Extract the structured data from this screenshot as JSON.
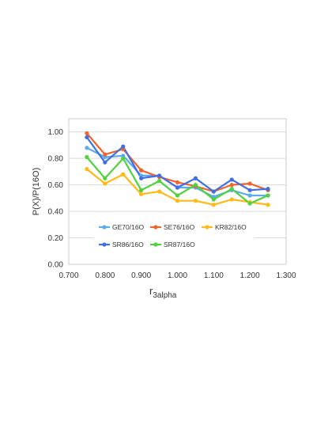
{
  "chart_data": {
    "type": "line",
    "xlabel": "r",
    "xlabel_sub": "3alpha",
    "ylabel": "P(X)/P(16O)",
    "xlim": [
      0.7,
      1.3
    ],
    "ylim": [
      0.0,
      1.1
    ],
    "x_ticks": [
      "0.700",
      "0.800",
      "0.900",
      "1.000",
      "1.100",
      "1.200",
      "1.300"
    ],
    "y_ticks": [
      "0.00",
      "0.20",
      "0.40",
      "0.60",
      "0.80",
      "1.00"
    ],
    "grid": "horizontal",
    "legend_position": "inside-bottom-left",
    "x": [
      0.75,
      0.8,
      0.85,
      0.9,
      0.95,
      1.0,
      1.05,
      1.1,
      1.15,
      1.2,
      1.25
    ],
    "series": [
      {
        "name": "GE70/16O",
        "color": "#5aaaf0",
        "values": [
          0.88,
          0.81,
          0.82,
          0.67,
          0.67,
          0.58,
          0.58,
          0.51,
          0.56,
          0.52,
          0.52
        ]
      },
      {
        "name": "SE76/16O",
        "color": "#f0642a",
        "values": [
          0.99,
          0.83,
          0.87,
          0.71,
          0.66,
          0.62,
          0.59,
          0.55,
          0.6,
          0.61,
          0.56
        ]
      },
      {
        "name": "KR82/16O",
        "color": "#ffb814",
        "values": [
          0.72,
          0.61,
          0.68,
          0.53,
          0.55,
          0.48,
          0.48,
          0.45,
          0.49,
          0.47,
          0.45
        ]
      },
      {
        "name": "SR86/16O",
        "color": "#3f6ee6",
        "values": [
          0.96,
          0.77,
          0.89,
          0.65,
          0.67,
          0.58,
          0.65,
          0.55,
          0.64,
          0.56,
          0.57
        ]
      },
      {
        "name": "SR87/16O",
        "color": "#50d23c",
        "values": [
          0.81,
          0.65,
          0.8,
          0.56,
          0.63,
          0.52,
          0.6,
          0.49,
          0.57,
          0.46,
          0.52
        ]
      }
    ]
  }
}
